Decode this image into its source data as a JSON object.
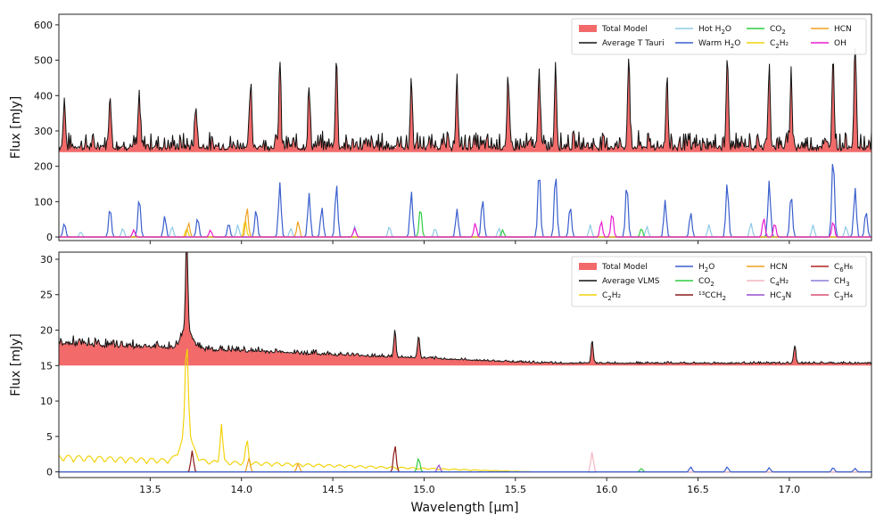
{
  "chart_data": {
    "type": "line",
    "xlabel": "Wavelength [μm]",
    "xlim": [
      13.0,
      17.45
    ],
    "xticks": [
      13.5,
      14.0,
      14.5,
      15.0,
      15.5,
      16.0,
      16.5,
      17.0
    ],
    "xticklabels": [
      "13.5",
      "14.0",
      "14.5",
      "15.0",
      "15.5",
      "16.0",
      "16.5",
      "17.0"
    ],
    "panels": [
      {
        "name": "top",
        "ylabel": "Flux [mJy]",
        "ylim": [
          -10,
          630
        ],
        "yticks": [
          0,
          100,
          200,
          300,
          400,
          500,
          600
        ],
        "yticklabels": [
          "0",
          "100",
          "200",
          "300",
          "400",
          "500",
          "600"
        ],
        "offset": 240,
        "continuum": 250,
        "legend_position": "top-right",
        "legend": [
          {
            "label": "Total Model",
            "sub": "",
            "color": "#f26a6a",
            "kind": "fill"
          },
          {
            "label": "Average T Tauri",
            "sub": "",
            "color": "#111111",
            "kind": "line"
          },
          {
            "label": "Hot H",
            "sub": "2",
            "after": "O",
            "color": "#8ecae6",
            "kind": "line"
          },
          {
            "label": "Warm H",
            "sub": "2",
            "after": "O",
            "color": "#3a5fcd",
            "kind": "line"
          },
          {
            "label": "CO",
            "sub": "2",
            "after": "",
            "color": "#2ecc40",
            "kind": "line"
          },
          {
            "label": "C",
            "sub": "2",
            "after": "H₂",
            "color": "#f2d30f",
            "kind": "line"
          },
          {
            "label": "HCN",
            "sub": "",
            "after": "",
            "color": "#f0a020",
            "kind": "line"
          },
          {
            "label": "OH",
            "sub": "",
            "after": "",
            "color": "#e81cd1",
            "kind": "line"
          }
        ],
        "lines": [
          {
            "species": "Warm H2O",
            "color": "#3a5fcd",
            "peaks": [
              [
                13.03,
                40
              ],
              [
                13.28,
                85
              ],
              [
                13.44,
                115
              ],
              [
                13.58,
                60
              ],
              [
                13.76,
                55
              ],
              [
                13.93,
                40
              ],
              [
                14.08,
                80
              ],
              [
                14.21,
                155
              ],
              [
                14.37,
                125
              ],
              [
                14.44,
                85
              ],
              [
                14.52,
                150
              ],
              [
                14.93,
                130
              ],
              [
                15.18,
                80
              ],
              [
                15.32,
                110
              ],
              [
                15.63,
                195
              ],
              [
                15.72,
                185
              ],
              [
                15.8,
                90
              ],
              [
                16.11,
                155
              ],
              [
                16.32,
                105
              ],
              [
                16.46,
                70
              ],
              [
                16.66,
                155
              ],
              [
                16.89,
                160
              ],
              [
                17.01,
                125
              ],
              [
                17.24,
                235
              ],
              [
                17.36,
                140
              ],
              [
                17.42,
                75
              ]
            ]
          },
          {
            "species": "Hot H2O",
            "color": "#8ecae6",
            "peaks": [
              [
                13.12,
                15
              ],
              [
                13.35,
                25
              ],
              [
                13.62,
                30
              ],
              [
                13.98,
                35
              ],
              [
                14.27,
                25
              ],
              [
                14.62,
                30
              ],
              [
                14.81,
                30
              ],
              [
                15.06,
                25
              ],
              [
                15.41,
                25
              ],
              [
                15.91,
                35
              ],
              [
                16.22,
                30
              ],
              [
                16.56,
                35
              ],
              [
                16.79,
                40
              ],
              [
                17.13,
                35
              ],
              [
                17.31,
                30
              ]
            ]
          },
          {
            "species": "CO2",
            "color": "#2ecc40",
            "peaks": [
              [
                14.98,
                85
              ],
              [
                15.43,
                20
              ],
              [
                16.19,
                25
              ]
            ]
          },
          {
            "species": "C2H2",
            "color": "#f2d30f",
            "peaks": [
              [
                13.7,
                25
              ],
              [
                14.02,
                50
              ]
            ]
          },
          {
            "species": "HCN",
            "color": "#f0a020",
            "peaks": [
              [
                13.71,
                40
              ],
              [
                14.03,
                85
              ],
              [
                14.31,
                45
              ]
            ]
          },
          {
            "species": "OH",
            "color": "#e81cd1",
            "peaks": [
              [
                13.41,
                20
              ],
              [
                13.83,
                20
              ],
              [
                14.62,
                25
              ],
              [
                15.28,
                40
              ],
              [
                15.97,
                45
              ],
              [
                16.03,
                70
              ],
              [
                16.86,
                55
              ],
              [
                16.92,
                40
              ],
              [
                17.24,
                45
              ]
            ]
          }
        ],
        "spikes": [
          [
            13.03,
            385
          ],
          [
            13.28,
            405
          ],
          [
            13.44,
            400
          ],
          [
            13.75,
            370
          ],
          [
            14.05,
            420
          ],
          [
            14.21,
            490
          ],
          [
            14.37,
            420
          ],
          [
            14.52,
            500
          ],
          [
            14.93,
            440
          ],
          [
            15.18,
            420
          ],
          [
            15.46,
            430
          ],
          [
            15.63,
            480
          ],
          [
            15.72,
            490
          ],
          [
            16.12,
            505
          ],
          [
            16.33,
            440
          ],
          [
            16.66,
            500
          ],
          [
            16.89,
            480
          ],
          [
            17.01,
            460
          ],
          [
            17.24,
            510
          ],
          [
            17.36,
            540
          ]
        ]
      },
      {
        "name": "bottom",
        "ylabel": "Flux [mJy]",
        "ylim": [
          -0.8,
          31
        ],
        "yticks": [
          0,
          5,
          10,
          15,
          20,
          25,
          30
        ],
        "yticklabels": [
          "0",
          "5",
          "10",
          "15",
          "20",
          "25",
          "30"
        ],
        "offset": 15,
        "continuum": 15.3,
        "legend_position": "top-right",
        "legend": [
          {
            "label": "Total Model",
            "sub": "",
            "color": "#f26a6a",
            "kind": "fill"
          },
          {
            "label": "Average VLMS",
            "sub": "",
            "color": "#111111",
            "kind": "line"
          },
          {
            "label": "C",
            "sub": "2",
            "after": "H₂",
            "color": "#f2d30f",
            "kind": "line"
          },
          {
            "label": "H",
            "sub": "2",
            "after": "O",
            "color": "#3a5fcd",
            "kind": "line"
          },
          {
            "label": "CO",
            "sub": "2",
            "after": "",
            "color": "#2ecc40",
            "kind": "line"
          },
          {
            "label": "¹³CCH",
            "sub": "2",
            "after": "",
            "color": "#8b1a1a",
            "kind": "line"
          },
          {
            "label": "HCN",
            "sub": "",
            "after": "",
            "color": "#f0a020",
            "kind": "line"
          },
          {
            "label": "C",
            "sub": "4",
            "after": "H₂",
            "color": "#f4b6c2",
            "kind": "line"
          },
          {
            "label": "HC",
            "sub": "3",
            "after": "N",
            "color": "#9b4fd0",
            "kind": "line"
          },
          {
            "label": "C",
            "sub": "6",
            "after": "H₆",
            "color": "#b22222",
            "kind": "line"
          },
          {
            "label": "CH",
            "sub": "3",
            "after": "",
            "color": "#8a7fd6",
            "kind": "line"
          },
          {
            "label": "C",
            "sub": "3",
            "after": "H₄",
            "color": "#d94f70",
            "kind": "line"
          }
        ],
        "lines": [
          {
            "species": "C2H2",
            "color": "#f2d30f",
            "peaks": [
              [
                13.7,
                13.5
              ],
              [
                13.89,
                5.5
              ],
              [
                14.03,
                3.2
              ]
            ]
          },
          {
            "species": "13CCH2",
            "color": "#8b1a1a",
            "peaks": [
              [
                13.73,
                3.0
              ],
              [
                14.84,
                3.8
              ]
            ]
          },
          {
            "species": "HCN",
            "color": "#f0a020",
            "peaks": [
              [
                14.04,
                2.0
              ],
              [
                14.31,
                1.2
              ]
            ]
          },
          {
            "species": "CO2",
            "color": "#2ecc40",
            "peaks": [
              [
                14.97,
                2.0
              ],
              [
                16.19,
                0.5
              ]
            ]
          },
          {
            "species": "HC3N",
            "color": "#9b4fd0",
            "peaks": [
              [
                15.08,
                1.0
              ]
            ]
          },
          {
            "species": "C4H2",
            "color": "#f4b6c2",
            "peaks": [
              [
                15.92,
                2.8
              ]
            ]
          },
          {
            "species": "H2O",
            "color": "#3a5fcd",
            "peaks": [
              [
                16.46,
                0.7
              ],
              [
                16.66,
                0.7
              ],
              [
                16.89,
                0.6
              ],
              [
                17.24,
                0.6
              ],
              [
                17.36,
                0.5
              ]
            ]
          }
        ],
        "spikes": [
          [
            13.7,
            29.0
          ],
          [
            14.84,
            19.0
          ],
          [
            14.97,
            18.5
          ],
          [
            15.92,
            18.5
          ],
          [
            17.03,
            17.8
          ]
        ]
      }
    ]
  }
}
